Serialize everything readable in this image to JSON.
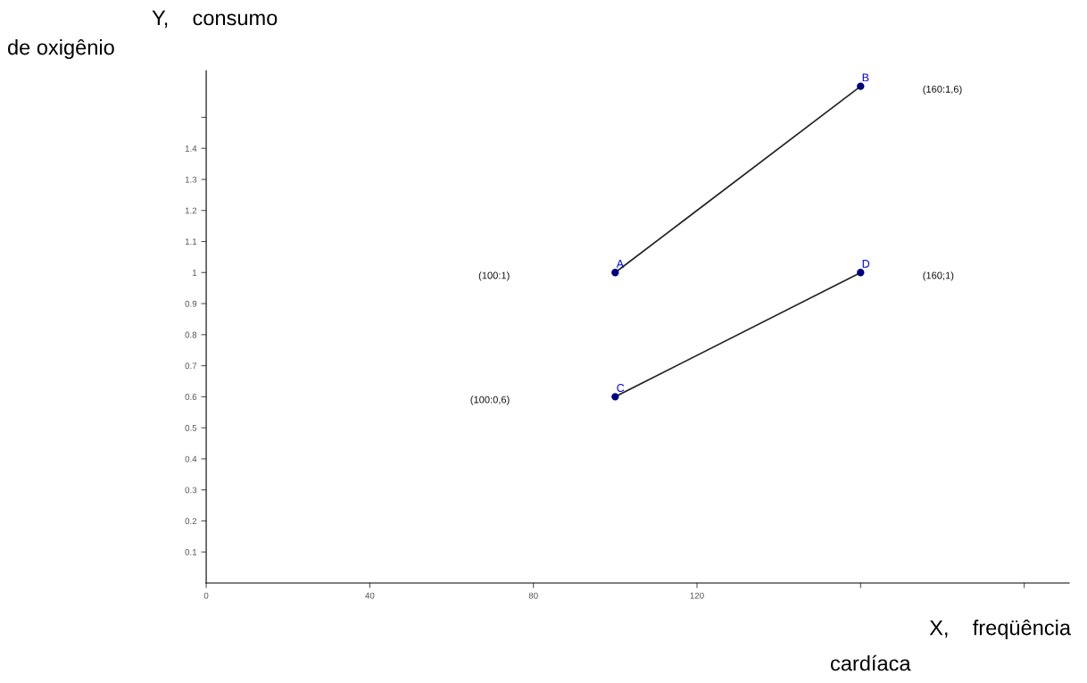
{
  "chart_data": {
    "type": "line",
    "xlabel": "X,    freqüência\ncardíaca",
    "ylabel": "Y,    consumo\nde oxigênio",
    "xlim": [
      0,
      211
    ],
    "ylim": [
      0,
      1.65
    ],
    "xticks": [
      0,
      40,
      80,
      120,
      {
        "value": 160,
        "label": null
      },
      {
        "value": 200,
        "label": null
      }
    ],
    "yticks": [
      0.1,
      0.2,
      0.3,
      0.4,
      0.5,
      0.6,
      0.7,
      0.8,
      0.9,
      1,
      1.1,
      1.2,
      1.3,
      1.4,
      {
        "value": 1.5,
        "label": null
      }
    ],
    "marker": "circle",
    "line_style": "solid",
    "grid": false,
    "x": [
      100,
      160
    ],
    "series": [
      {
        "values": [
          1,
          1.6
        ],
        "color": "#000080",
        "value_labels": [
          "A",
          "B"
        ]
      },
      {
        "values": [
          0.6,
          1
        ],
        "color": "#000080",
        "value_labels": [
          "C",
          "D"
        ]
      }
    ],
    "annotations": [
      "(100:1)",
      "(160:1,6)",
      "(100:0,6)",
      "(160;1)"
    ]
  }
}
